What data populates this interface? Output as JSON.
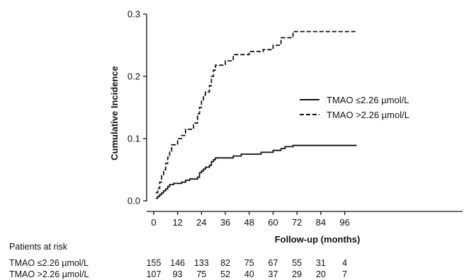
{
  "chart_data": {
    "type": "line",
    "title": "",
    "xlabel": "Follow-up (months)",
    "ylabel": "Cumulative Incidence",
    "xlim": [
      0,
      102
    ],
    "ylim": [
      0,
      0.3
    ],
    "x_ticks": [
      0,
      12,
      24,
      36,
      48,
      60,
      72,
      84,
      96
    ],
    "y_ticks": [
      "0.0",
      "0.1",
      "0.2",
      "0.3"
    ],
    "grid": false,
    "legend_position": "right",
    "step": true,
    "series": [
      {
        "name": "TMAO ≤2.26 µmol/L",
        "line_style": "solid",
        "x": [
          1,
          2,
          3,
          4,
          5,
          6,
          7,
          8,
          10,
          12,
          14,
          16,
          18,
          20,
          22,
          23,
          24,
          25,
          26,
          28,
          29,
          30,
          31,
          36,
          40,
          44,
          48,
          54,
          60,
          64,
          66,
          70,
          72,
          84,
          96,
          102
        ],
        "y": [
          0.004,
          0.007,
          0.01,
          0.013,
          0.016,
          0.019,
          0.023,
          0.026,
          0.028,
          0.028,
          0.03,
          0.033,
          0.035,
          0.035,
          0.038,
          0.045,
          0.048,
          0.051,
          0.054,
          0.057,
          0.063,
          0.066,
          0.069,
          0.069,
          0.072,
          0.075,
          0.075,
          0.078,
          0.081,
          0.084,
          0.087,
          0.089,
          0.089,
          0.089,
          0.089,
          0.089
        ]
      },
      {
        "name": "TMAO >2.26 µmol/L",
        "line_style": "dashed",
        "x": [
          1,
          2,
          3,
          4,
          5,
          6,
          7,
          8,
          9,
          12,
          14,
          16,
          20,
          22,
          23,
          24,
          25,
          26,
          28,
          29,
          30,
          31,
          36,
          38,
          40,
          48,
          52,
          55,
          60,
          64,
          66,
          70,
          72,
          102
        ],
        "y": [
          0.013,
          0.02,
          0.03,
          0.04,
          0.05,
          0.06,
          0.07,
          0.08,
          0.09,
          0.1,
          0.105,
          0.115,
          0.125,
          0.14,
          0.15,
          0.16,
          0.17,
          0.175,
          0.185,
          0.2,
          0.21,
          0.218,
          0.225,
          0.225,
          0.235,
          0.24,
          0.24,
          0.243,
          0.25,
          0.262,
          0.262,
          0.272,
          0.272,
          0.272
        ]
      }
    ]
  },
  "risk_table": {
    "title": "Patients at risk",
    "rows": [
      {
        "label": "TMAO ≤2.26 µmol/L",
        "values": [
          "155",
          "146",
          "133",
          "82",
          "75",
          "67",
          "55",
          "31",
          "4"
        ]
      },
      {
        "label": "TMAO >2.26 µmol/L",
        "values": [
          "107",
          "93",
          "75",
          "52",
          "40",
          "37",
          "29",
          "20",
          "7"
        ]
      }
    ]
  }
}
